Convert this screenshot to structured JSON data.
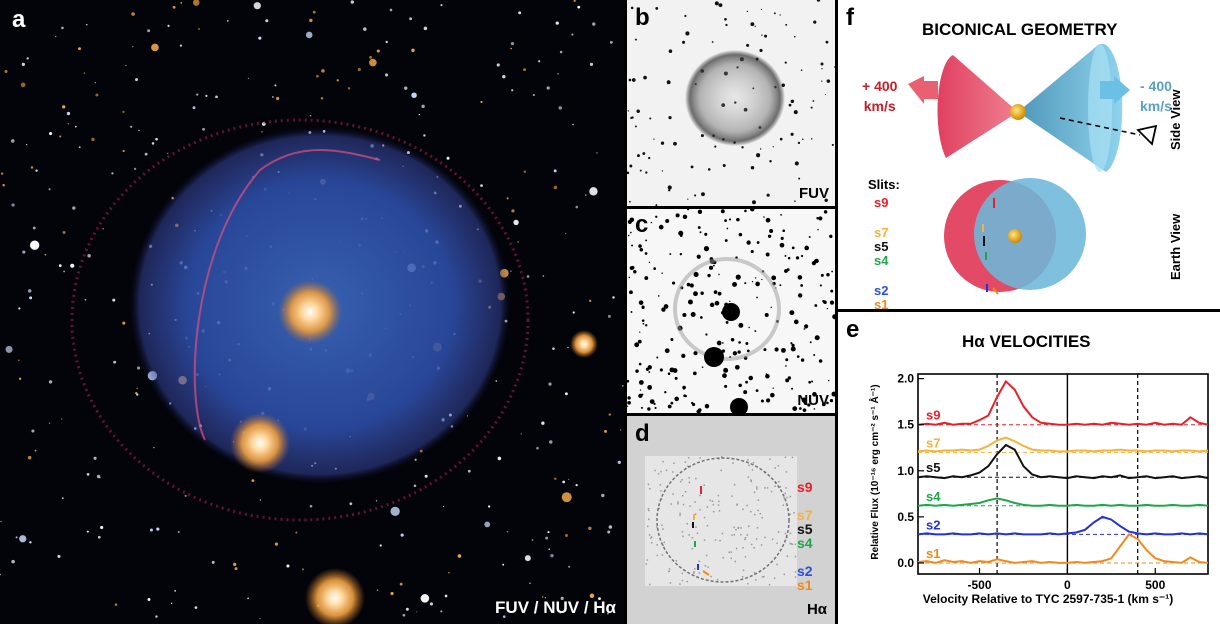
{
  "panels": {
    "a": {
      "label": "a",
      "caption": "FUV / NUV / Hα"
    },
    "b": {
      "label": "b",
      "caption": "FUV"
    },
    "c": {
      "label": "c",
      "caption": "NUV"
    },
    "d": {
      "label": "d",
      "caption": "Hα",
      "slits": [
        "s9",
        "s7",
        "s5",
        "s4",
        "s2",
        "s1"
      ]
    },
    "f": {
      "label": "f",
      "title": "BICONICAL GEOMETRY",
      "left_velocity": [
        "+ 400",
        "km/s"
      ],
      "right_velocity": [
        "- 400",
        "km/s"
      ],
      "side_view": "Side View",
      "earth_view": "Earth View",
      "slits_label": "Slits:",
      "slits": [
        "s9",
        "s7",
        "s5",
        "s4",
        "s2",
        "s1"
      ]
    },
    "e": {
      "label": "e"
    }
  },
  "colors": {
    "s9": "#e8202a",
    "s7": "#f5b33c",
    "s5": "#111111",
    "s4": "#1fa64b",
    "s2": "#2431d6",
    "s1": "#f08a1c",
    "cone_red": "#e9566a",
    "cone_blue": "#6fb6d8"
  },
  "chart_data": {
    "type": "line",
    "title": "Hα VELOCITIES",
    "xlabel": "Velocity Relative to TYC 2597-735-1 (km s⁻¹)",
    "ylabel": "Relative Flux (10⁻¹⁶ erg cm⁻² s⁻¹ Å⁻¹)",
    "xlim": [
      -850,
      800
    ],
    "ylim": [
      -0.12,
      2.05
    ],
    "xticks": [
      -500,
      0,
      500
    ],
    "xtick_labels": [
      "-500",
      "0",
      "500"
    ],
    "yticks": [
      0.0,
      0.5,
      1.0,
      1.5,
      2.0
    ],
    "ytick_labels": [
      "0.0",
      "0.5",
      "1.0",
      "1.5",
      "2.0"
    ],
    "vlines_dashed": [
      -400,
      400
    ],
    "vline_solid": 0,
    "x": [
      -850,
      -800,
      -750,
      -700,
      -650,
      -600,
      -550,
      -500,
      -450,
      -400,
      -350,
      -300,
      -250,
      -200,
      -150,
      -100,
      -50,
      0,
      50,
      100,
      150,
      200,
      250,
      300,
      350,
      400,
      450,
      500,
      550,
      600,
      650,
      700,
      750,
      800
    ],
    "series": [
      {
        "name": "s9",
        "baseline": 1.5,
        "values": [
          1.5,
          1.51,
          1.5,
          1.52,
          1.5,
          1.51,
          1.51,
          1.55,
          1.6,
          1.8,
          1.97,
          1.88,
          1.7,
          1.58,
          1.52,
          1.51,
          1.5,
          1.5,
          1.51,
          1.5,
          1.51,
          1.5,
          1.52,
          1.51,
          1.5,
          1.51,
          1.5,
          1.52,
          1.5,
          1.51,
          1.5,
          1.58,
          1.52,
          1.5
        ]
      },
      {
        "name": "s7",
        "baseline": 1.2,
        "values": [
          1.21,
          1.22,
          1.21,
          1.22,
          1.22,
          1.23,
          1.22,
          1.23,
          1.27,
          1.33,
          1.36,
          1.32,
          1.27,
          1.23,
          1.22,
          1.22,
          1.21,
          1.21,
          1.22,
          1.22,
          1.21,
          1.22,
          1.22,
          1.23,
          1.22,
          1.22,
          1.21,
          1.22,
          1.22,
          1.21,
          1.22,
          1.22,
          1.21,
          1.22
        ]
      },
      {
        "name": "s5",
        "baseline": 0.93,
        "values": [
          0.93,
          0.94,
          0.93,
          0.92,
          0.94,
          0.93,
          0.95,
          0.98,
          1.05,
          1.18,
          1.28,
          1.23,
          1.05,
          0.96,
          0.93,
          0.94,
          0.93,
          0.92,
          0.94,
          0.93,
          0.92,
          0.94,
          0.93,
          0.95,
          0.92,
          0.93,
          0.94,
          0.92,
          0.93,
          0.94,
          0.92,
          0.93,
          0.94,
          0.92
        ]
      },
      {
        "name": "s4",
        "baseline": 0.62,
        "values": [
          0.62,
          0.63,
          0.62,
          0.63,
          0.62,
          0.63,
          0.64,
          0.65,
          0.68,
          0.7,
          0.68,
          0.65,
          0.63,
          0.62,
          0.62,
          0.63,
          0.62,
          0.62,
          0.63,
          0.62,
          0.62,
          0.63,
          0.62,
          0.63,
          0.62,
          0.62,
          0.63,
          0.62,
          0.62,
          0.63,
          0.62,
          0.62,
          0.63,
          0.62
        ]
      },
      {
        "name": "s2",
        "baseline": 0.31,
        "values": [
          0.31,
          0.32,
          0.31,
          0.31,
          0.32,
          0.31,
          0.31,
          0.32,
          0.31,
          0.32,
          0.31,
          0.32,
          0.31,
          0.31,
          0.31,
          0.32,
          0.31,
          0.32,
          0.33,
          0.36,
          0.44,
          0.5,
          0.47,
          0.4,
          0.34,
          0.32,
          0.31,
          0.32,
          0.31,
          0.31,
          0.32,
          0.31,
          0.32,
          0.31
        ]
      },
      {
        "name": "s1",
        "baseline": 0.0,
        "values": [
          0.01,
          0.02,
          0.0,
          0.03,
          0.01,
          0.02,
          0.0,
          0.02,
          0.01,
          0.04,
          0.02,
          0.0,
          0.01,
          0.02,
          0.0,
          0.01,
          0.0,
          0.0,
          0.01,
          0.0,
          0.01,
          0.02,
          0.05,
          0.18,
          0.31,
          0.26,
          0.14,
          0.05,
          0.02,
          0.01,
          0.0,
          0.06,
          0.01,
          0.0
        ]
      }
    ]
  }
}
